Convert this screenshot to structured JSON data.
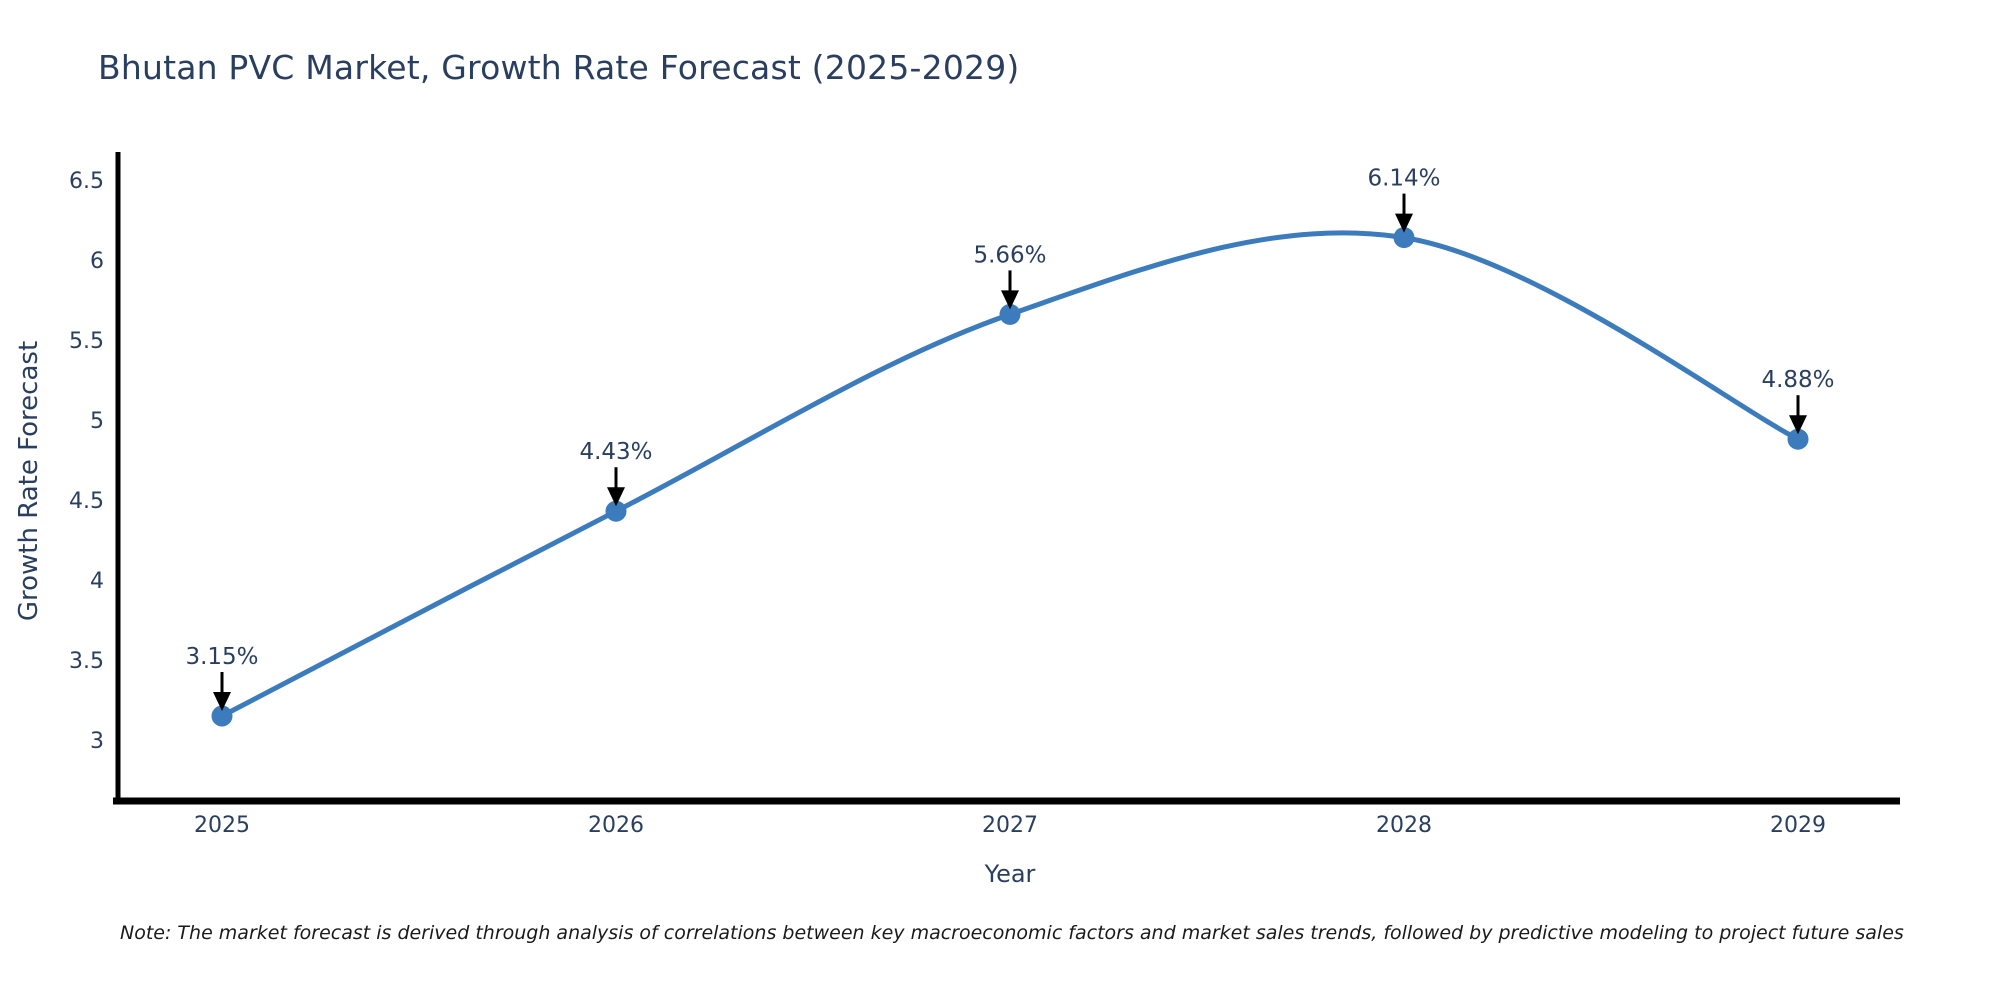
{
  "note": "Note: The market forecast is derived through analysis of correlations between key macroeconomic factors and market sales trends, followed by predictive modeling to project future sales",
  "chart_data": {
    "type": "line",
    "title": "Bhutan PVC Market, Growth Rate Forecast (2025-2029)",
    "xlabel": "Year",
    "ylabel": "Growth Rate Forecast",
    "categories": [
      "2025",
      "2026",
      "2027",
      "2028",
      "2029"
    ],
    "values": [
      3.15,
      4.43,
      5.66,
      6.14,
      4.88
    ],
    "point_labels": [
      "3.15%",
      "4.43%",
      "5.66%",
      "6.14%",
      "4.88%"
    ],
    "ytick_labels": [
      "6.5",
      "6",
      "5.5",
      "5",
      "4.5",
      "4",
      "3.5",
      "3"
    ],
    "yticks": [
      6.5,
      6.0,
      5.5,
      5.0,
      4.5,
      4.0,
      3.5,
      3.0
    ],
    "ylim": [
      2.62,
      6.67
    ],
    "line_shape": "spline",
    "grid": false,
    "legend": "none",
    "annotation_style": "text-with-down-arrow",
    "colors": {
      "line": "#3d7cbc",
      "marker": "#3d7cbc",
      "annotation_arrow": "#000000",
      "annotation_text": "#2a3f5f",
      "axis_line": "#000000",
      "tick_text": "#2a3f5f",
      "title_text": "#2a3f5f",
      "note_text": "#1a1a1a",
      "background": "#ffffff"
    }
  }
}
